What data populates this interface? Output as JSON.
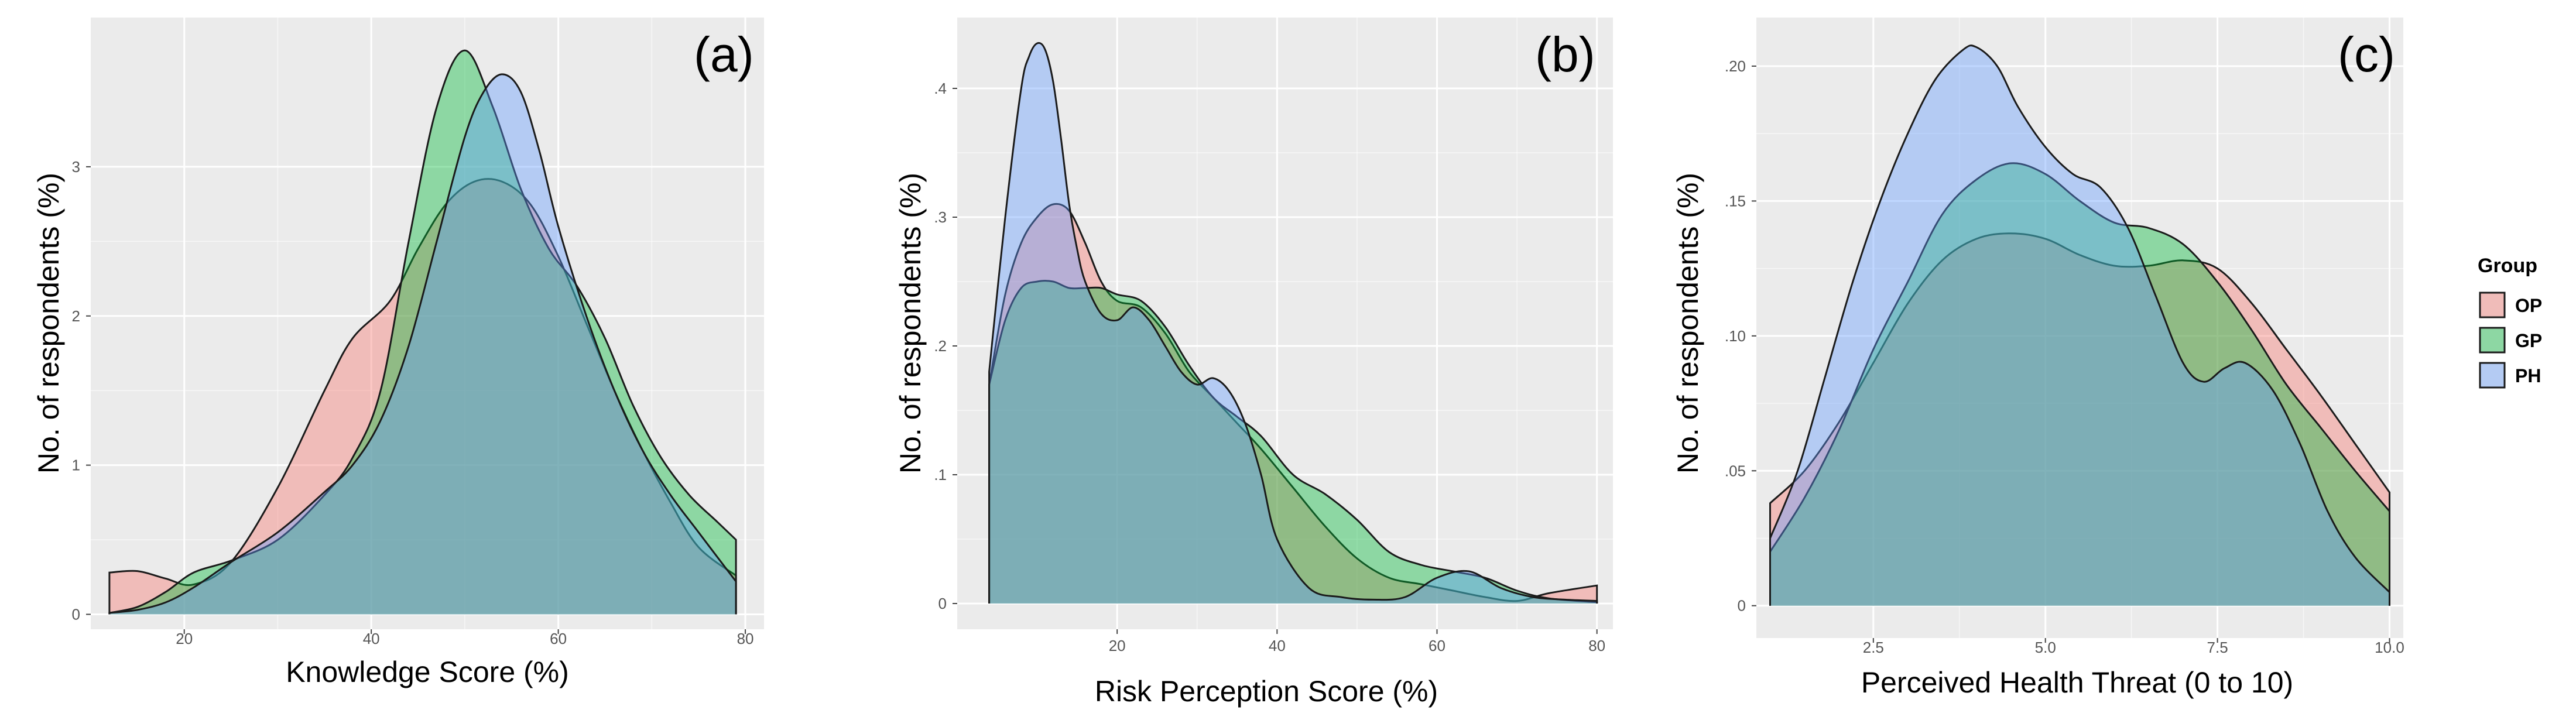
{
  "colors": {
    "panel_bg": "#EBEBEB",
    "grid_major": "#FFFFFF",
    "OP": "#F8766D",
    "GP": "#00BA38",
    "PH": "#619CFF",
    "fill_opacity": 0.4,
    "outline": "#1a1a1a"
  },
  "legend": {
    "title": "Group",
    "entries": [
      {
        "key": "OP",
        "label": "OP"
      },
      {
        "key": "GP",
        "label": "GP"
      },
      {
        "key": "PH",
        "label": "PH"
      }
    ]
  },
  "chart_data": [
    {
      "id": "a",
      "type": "area",
      "panel_label": "(a)",
      "xlabel": "Knowledge Score (%)",
      "ylabel": "No. of respondents (%)",
      "xlim": [
        10,
        82
      ],
      "ylim": [
        -0.1,
        4.0
      ],
      "xticks": [
        20,
        40,
        60,
        80
      ],
      "xtick_labels": [
        "20",
        "40",
        "60",
        "80"
      ],
      "yticks": [
        0,
        1,
        2,
        3
      ],
      "ytick_labels": [
        "0",
        "1",
        "2",
        "3"
      ],
      "series": [
        {
          "name": "OP",
          "x": [
            12,
            15,
            18,
            21,
            25,
            30,
            35,
            38,
            42,
            45,
            48,
            51,
            54,
            57,
            60,
            63,
            66,
            69,
            72,
            75,
            79
          ],
          "y": [
            0.28,
            0.29,
            0.24,
            0.2,
            0.35,
            0.85,
            1.5,
            1.85,
            2.1,
            2.45,
            2.75,
            2.9,
            2.9,
            2.75,
            2.4,
            1.95,
            1.5,
            1.1,
            0.75,
            0.45,
            0.26
          ]
        },
        {
          "name": "GP",
          "x": [
            12,
            15,
            18,
            21,
            25,
            30,
            35,
            38,
            41,
            44,
            47,
            50,
            53,
            56,
            59,
            62,
            65,
            68,
            71,
            74,
            77,
            79
          ],
          "y": [
            0.01,
            0.05,
            0.15,
            0.28,
            0.36,
            0.5,
            0.8,
            1.05,
            1.5,
            2.5,
            3.4,
            3.78,
            3.4,
            2.85,
            2.45,
            2.2,
            1.85,
            1.4,
            1.05,
            0.8,
            0.62,
            0.5
          ]
        },
        {
          "name": "PH",
          "x": [
            12,
            15,
            18,
            21,
            25,
            30,
            35,
            38,
            41,
            44,
            47,
            50,
            52,
            54,
            56,
            58,
            60,
            63,
            66,
            69,
            72,
            75,
            79
          ],
          "y": [
            0.01,
            0.03,
            0.08,
            0.18,
            0.35,
            0.55,
            0.82,
            1.0,
            1.3,
            1.8,
            2.5,
            3.2,
            3.5,
            3.62,
            3.5,
            3.1,
            2.6,
            2.0,
            1.5,
            1.1,
            0.8,
            0.55,
            0.22
          ]
        }
      ]
    },
    {
      "id": "b",
      "type": "area",
      "panel_label": "(b)",
      "xlabel": "Risk Perception Score (%)",
      "ylabel": "No. of respondents (%)",
      "xlim": [
        0,
        82
      ],
      "ylim": [
        -0.02,
        0.455
      ],
      "xticks": [
        20,
        40,
        60,
        80
      ],
      "xtick_labels": [
        "20",
        "40",
        "60",
        "80"
      ],
      "yticks": [
        0,
        0.1,
        0.2,
        0.3,
        0.4
      ],
      "ytick_labels": [
        "0",
        ".1",
        ".2",
        ".3",
        ".4"
      ],
      "series": [
        {
          "name": "OP",
          "x": [
            4,
            6,
            8,
            10,
            12,
            14,
            16,
            18,
            20,
            23,
            26,
            29,
            32,
            35,
            38,
            42,
            46,
            50,
            54,
            58,
            62,
            66,
            70,
            74,
            80
          ],
          "y": [
            0.17,
            0.24,
            0.28,
            0.3,
            0.31,
            0.305,
            0.28,
            0.25,
            0.235,
            0.23,
            0.21,
            0.18,
            0.16,
            0.14,
            0.12,
            0.09,
            0.06,
            0.035,
            0.02,
            0.015,
            0.01,
            0.005,
            0.002,
            0.008,
            0.014
          ]
        },
        {
          "name": "GP",
          "x": [
            4,
            6,
            8,
            10,
            12,
            14,
            16,
            18,
            20,
            23,
            26,
            29,
            32,
            35,
            38,
            42,
            46,
            50,
            54,
            58,
            62,
            66,
            70,
            74,
            80
          ],
          "y": [
            0.17,
            0.22,
            0.245,
            0.25,
            0.25,
            0.245,
            0.245,
            0.245,
            0.24,
            0.235,
            0.215,
            0.185,
            0.16,
            0.145,
            0.13,
            0.1,
            0.085,
            0.065,
            0.04,
            0.03,
            0.025,
            0.02,
            0.01,
            0.004,
            0.001
          ]
        },
        {
          "name": "PH",
          "x": [
            4,
            6,
            8,
            9,
            10,
            11,
            12,
            13,
            14,
            15,
            16,
            18,
            20,
            22,
            24,
            26,
            28,
            30,
            32,
            34,
            36,
            38,
            40,
            44,
            48,
            52,
            56,
            60,
            64,
            68,
            72,
            76,
            80
          ],
          "y": [
            0.18,
            0.3,
            0.4,
            0.425,
            0.435,
            0.43,
            0.405,
            0.36,
            0.31,
            0.275,
            0.25,
            0.225,
            0.22,
            0.23,
            0.22,
            0.2,
            0.18,
            0.17,
            0.175,
            0.165,
            0.14,
            0.1,
            0.05,
            0.012,
            0.005,
            0.003,
            0.005,
            0.02,
            0.025,
            0.012,
            0.005,
            0.003,
            0.002
          ]
        }
      ]
    },
    {
      "id": "c",
      "type": "area",
      "panel_label": "(c)",
      "xlabel": "Perceived Health Threat (0 to 10)",
      "ylabel": "No. of respondents (%)",
      "xlim": [
        0.8,
        10.2
      ],
      "ylim": [
        -0.012,
        0.218
      ],
      "xticks": [
        2.5,
        5.0,
        7.5,
        10.0
      ],
      "xtick_labels": [
        "2.5",
        "5.0",
        "7.5",
        "10.0"
      ],
      "yticks": [
        0,
        0.05,
        0.1,
        0.15,
        0.2
      ],
      "ytick_labels": [
        "0",
        ".05",
        ".10",
        ".15",
        ".20"
      ],
      "series": [
        {
          "name": "OP",
          "x": [
            1,
            1.5,
            2,
            2.5,
            3,
            3.5,
            4,
            4.5,
            5,
            5.5,
            6,
            6.5,
            7,
            7.5,
            8,
            8.5,
            9,
            9.5,
            10
          ],
          "y": [
            0.038,
            0.05,
            0.068,
            0.09,
            0.112,
            0.128,
            0.136,
            0.138,
            0.136,
            0.13,
            0.126,
            0.126,
            0.128,
            0.125,
            0.112,
            0.095,
            0.078,
            0.06,
            0.042
          ]
        },
        {
          "name": "GP",
          "x": [
            1,
            1.5,
            2,
            2.5,
            3,
            3.5,
            4,
            4.5,
            5,
            5.5,
            6,
            6.5,
            7,
            7.5,
            8,
            8.5,
            9,
            9.5,
            10
          ],
          "y": [
            0.02,
            0.04,
            0.065,
            0.095,
            0.12,
            0.145,
            0.158,
            0.164,
            0.16,
            0.15,
            0.142,
            0.14,
            0.134,
            0.12,
            0.102,
            0.082,
            0.066,
            0.05,
            0.035
          ]
        },
        {
          "name": "PH",
          "x": [
            1,
            1.4,
            1.8,
            2.2,
            2.6,
            3,
            3.4,
            3.8,
            4,
            4.3,
            4.6,
            5,
            5.4,
            5.8,
            6.2,
            6.6,
            7,
            7.3,
            7.6,
            7.9,
            8.3,
            8.7,
            9.1,
            9.5,
            10
          ],
          "y": [
            0.025,
            0.05,
            0.085,
            0.12,
            0.15,
            0.175,
            0.195,
            0.206,
            0.207,
            0.2,
            0.185,
            0.17,
            0.16,
            0.155,
            0.14,
            0.115,
            0.09,
            0.083,
            0.088,
            0.09,
            0.08,
            0.06,
            0.035,
            0.018,
            0.005
          ]
        }
      ]
    }
  ]
}
